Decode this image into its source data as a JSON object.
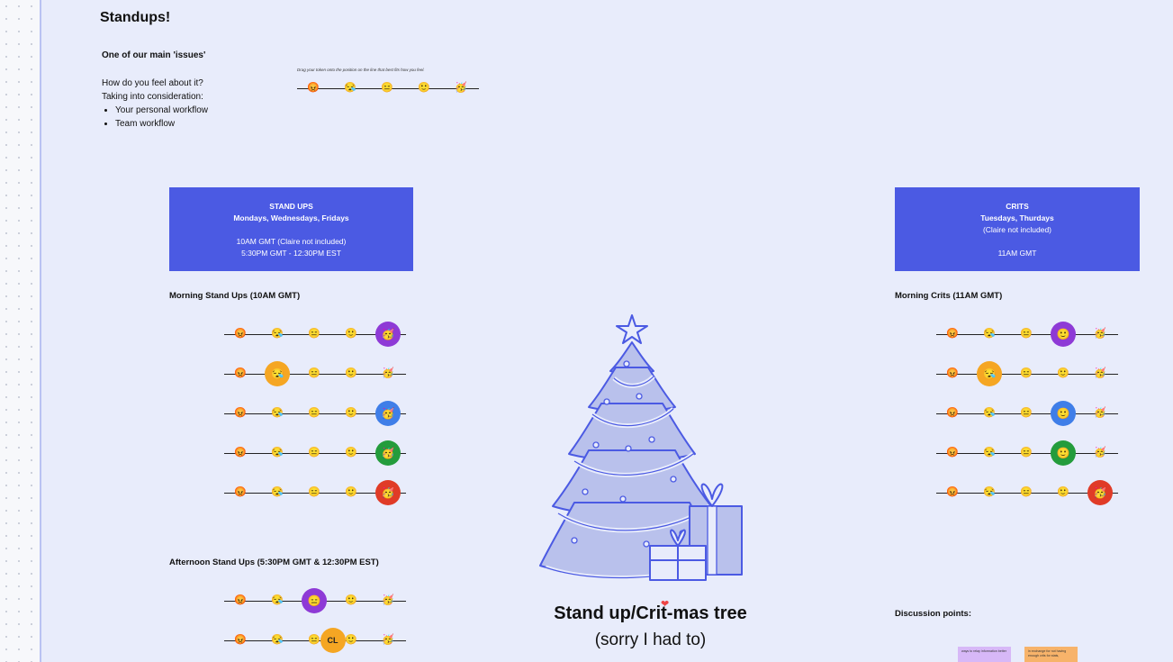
{
  "board": {
    "title": "Standups!",
    "issue_heading": "One of our main 'issues'",
    "issue_question": "How do you feel about it?",
    "issue_consider": "Taking into consideration:",
    "issue_bullets": [
      "Your personal workflow",
      "Team workflow"
    ],
    "drag_hint": "Drag your token onto the position on the line that best fits how you feel."
  },
  "scale_emojis": [
    "😡",
    "😪",
    "😑",
    "🙂",
    "🥳"
  ],
  "standups_card": {
    "title": "STAND UPS",
    "days": "Mondays, Wednesdays, Fridays",
    "time1": "10AM GMT (Claire not included)",
    "time2": "5:30PM GMT - 12:30PM EST",
    "color": "#4b5ae3"
  },
  "crits_card": {
    "title": "CRITS",
    "days": "Tuesdays, Thurdays",
    "note": "(Claire not included)",
    "time": "11AM GMT",
    "color": "#4b5ae3"
  },
  "morning_standups": {
    "heading": "Morning Stand Ups (10AM GMT)",
    "votes": [
      {
        "position": 4,
        "color": "#8e3ad6"
      },
      {
        "position": 1,
        "color": "#f5a623"
      },
      {
        "position": 4,
        "color": "#3f7ee8"
      },
      {
        "position": 4,
        "color": "#249c3c"
      },
      {
        "position": 4,
        "color": "#e03b27"
      }
    ]
  },
  "morning_crits": {
    "heading": "Morning Crits (11AM GMT)",
    "votes": [
      {
        "position": 3,
        "color": "#8e3ad6"
      },
      {
        "position": 1,
        "color": "#f5a623"
      },
      {
        "position": 3,
        "color": "#3f7ee8"
      },
      {
        "position": 3,
        "color": "#249c3c"
      },
      {
        "position": 4,
        "color": "#e03b27"
      }
    ]
  },
  "afternoon_standups": {
    "heading": "Afternoon Stand Ups (5:30PM GMT & 12:30PM EST)",
    "votes": [
      {
        "position": 2,
        "color": "#8e3ad6",
        "initials": ""
      },
      {
        "position": 2.5,
        "color": "#f5a623",
        "initials": "CL"
      }
    ]
  },
  "tree": {
    "title": "Stand up/Crit-mas tree",
    "subtitle": "(sorry I had to)",
    "line_color": "#4b5ae3",
    "fill_color": "#b9c1ec"
  },
  "discussion": {
    "heading": "Discussion points:",
    "notes": [
      {
        "text": "ways to relay information better",
        "color": "#d7b8f7"
      },
      {
        "text": "in exchange for not having enough crits for stats,",
        "color": "#f7b36a"
      }
    ]
  }
}
